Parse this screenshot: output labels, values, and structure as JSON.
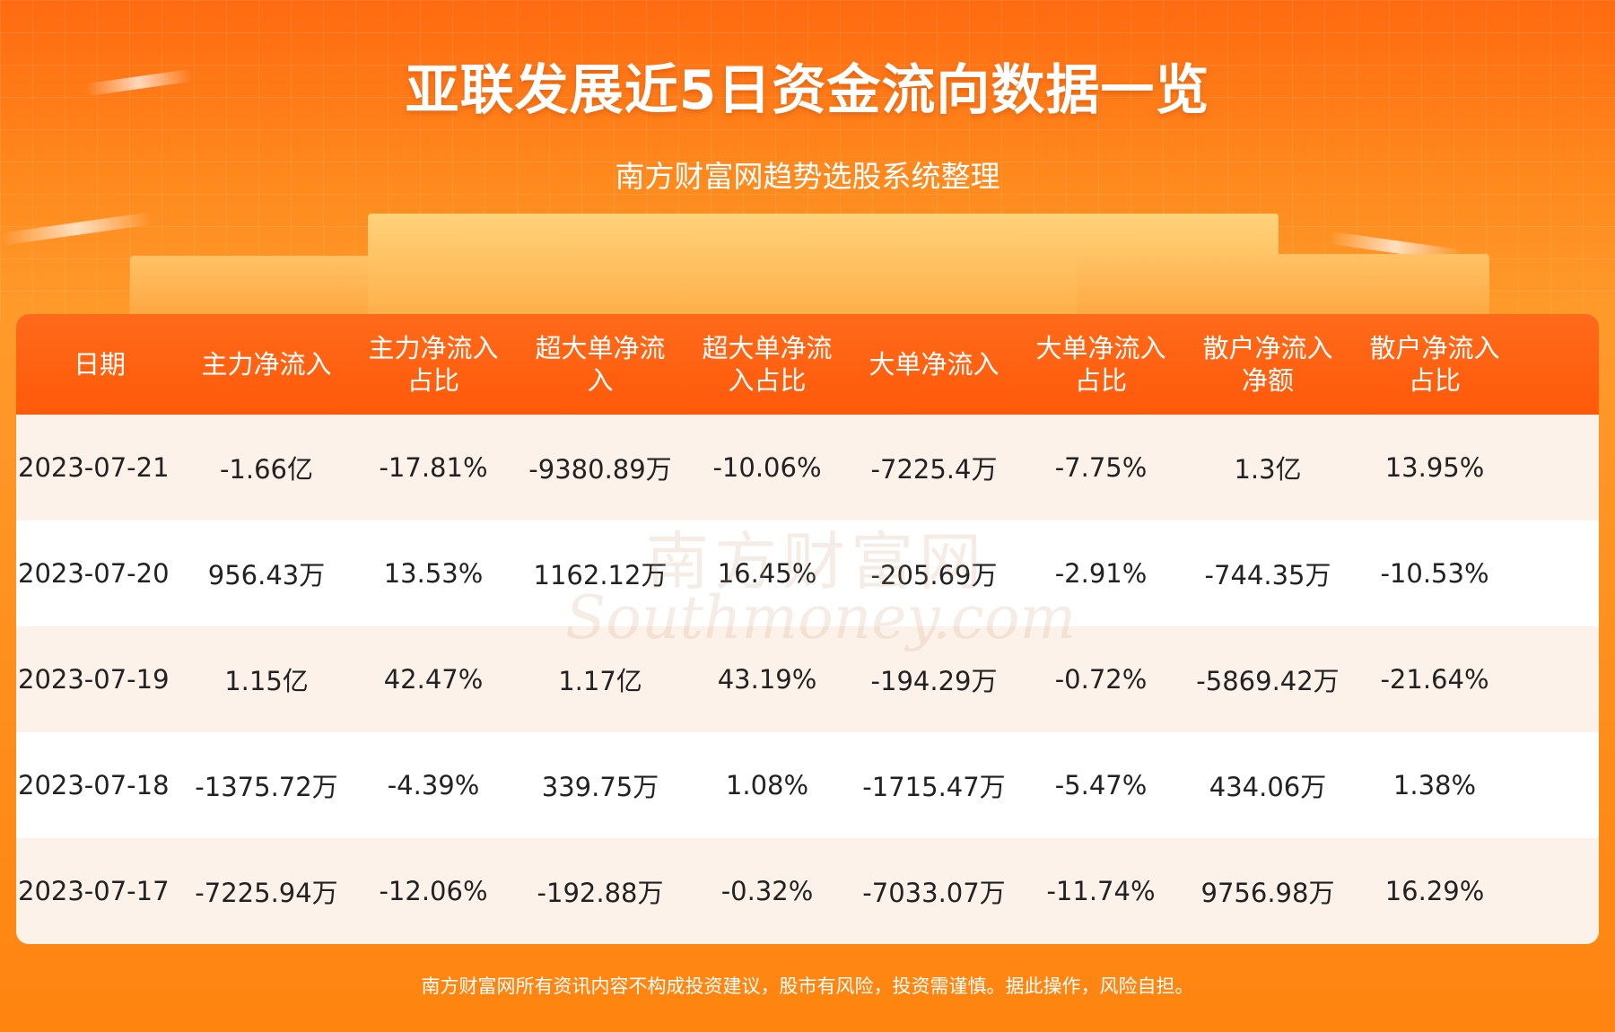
{
  "header": {
    "title": "亚联发展近5日资金流向数据一览",
    "subtitle": "南方财富网趋势选股系统整理"
  },
  "watermark": {
    "cn": "南方财富网",
    "en": "Southmoney.com"
  },
  "chart_data": {
    "type": "table",
    "columns": [
      "日期",
      "主力净流入",
      "主力净流入占比",
      "超大单净流入",
      "超大单净流入占比",
      "大单净流入",
      "大单净流入占比",
      "散户净流入净额",
      "散户净流入占比"
    ],
    "column_display": [
      [
        "日期"
      ],
      [
        "主力净流入"
      ],
      [
        "主力净流入",
        "占比"
      ],
      [
        "超大单净流",
        "入"
      ],
      [
        "超大单净流",
        "入占比"
      ],
      [
        "大单净流入"
      ],
      [
        "大单净流入",
        "占比"
      ],
      [
        "散户净流入",
        "净额"
      ],
      [
        "散户净流入",
        "占比"
      ]
    ],
    "rows": [
      [
        "2023-07-21",
        "-1.66亿",
        "-17.81%",
        "-9380.89万",
        "-10.06%",
        "-7225.4万",
        "-7.75%",
        "1.3亿",
        "13.95%"
      ],
      [
        "2023-07-20",
        "956.43万",
        "13.53%",
        "1162.12万",
        "16.45%",
        "-205.69万",
        "-2.91%",
        "-744.35万",
        "-10.53%"
      ],
      [
        "2023-07-19",
        "1.15亿",
        "42.47%",
        "1.17亿",
        "43.19%",
        "-194.29万",
        "-0.72%",
        "-5869.42万",
        "-21.64%"
      ],
      [
        "2023-07-18",
        "-1375.72万",
        "-4.39%",
        "339.75万",
        "1.08%",
        "-1715.47万",
        "-5.47%",
        "434.06万",
        "1.38%"
      ],
      [
        "2023-07-17",
        "-7225.94万",
        "-12.06%",
        "-192.88万",
        "-0.32%",
        "-7033.07万",
        "-11.74%",
        "9756.98万",
        "16.29%"
      ]
    ]
  },
  "footer": {
    "disclaimer": "南方财富网所有资讯内容不构成投资建议，股市有风险，投资需谨慎。据此操作，风险自担。"
  },
  "colors": {
    "header_row": "#ff5a0a",
    "odd_row": "#fdf2ea",
    "even_row": "#ffffff",
    "background": "#ff8a1e"
  }
}
